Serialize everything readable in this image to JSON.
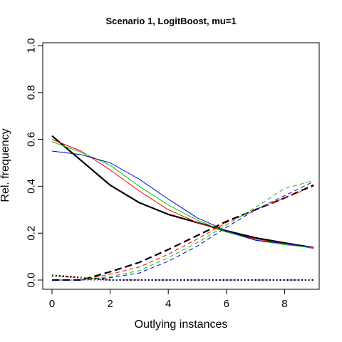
{
  "chart_data": {
    "type": "line",
    "title": "Scenario 1, LogitBoost, mu=1",
    "xlabel": "Outlying instances",
    "ylabel": "Rel. frequency",
    "xlim": [
      0,
      9
    ],
    "ylim": [
      0,
      1
    ],
    "x_ticks": [
      "0",
      "2",
      "4",
      "6",
      "8"
    ],
    "y_ticks": [
      "0.0",
      "0.2",
      "0.4",
      "0.6",
      "0.8",
      "1.0"
    ],
    "x": [
      0,
      1,
      2,
      3,
      4,
      5,
      6,
      7,
      8,
      9
    ],
    "series": [
      {
        "color": "#000000",
        "style": "solid",
        "width": 2.2,
        "values": [
          0.615,
          0.51,
          0.405,
          0.33,
          0.28,
          0.245,
          0.21,
          0.18,
          0.158,
          0.138
        ]
      },
      {
        "color": "#ff0000",
        "style": "solid",
        "width": 1,
        "values": [
          0.6,
          0.55,
          0.47,
          0.38,
          0.3,
          0.245,
          0.205,
          0.175,
          0.155,
          0.135
        ]
      },
      {
        "color": "#00cc00",
        "style": "solid",
        "width": 1,
        "values": [
          0.59,
          0.545,
          0.49,
          0.4,
          0.32,
          0.255,
          0.205,
          0.17,
          0.15,
          0.138
        ]
      },
      {
        "color": "#0000cc",
        "style": "solid",
        "width": 1,
        "values": [
          0.55,
          0.535,
          0.5,
          0.43,
          0.345,
          0.265,
          0.21,
          0.17,
          0.155,
          0.14
        ]
      },
      {
        "color": "#000000",
        "style": "dashed",
        "width": 2.2,
        "values": [
          0.0,
          0.0,
          0.035,
          0.075,
          0.13,
          0.19,
          0.25,
          0.3,
          0.35,
          0.405
        ]
      },
      {
        "color": "#ff0000",
        "style": "dashed",
        "width": 1,
        "values": [
          0.0,
          0.0,
          0.025,
          0.055,
          0.11,
          0.175,
          0.245,
          0.3,
          0.35,
          0.4
        ]
      },
      {
        "color": "#00cc00",
        "style": "dashed",
        "width": 1,
        "values": [
          0.0,
          0.0,
          0.015,
          0.04,
          0.095,
          0.16,
          0.235,
          0.31,
          0.39,
          0.425
        ]
      },
      {
        "color": "#0000cc",
        "style": "dashed",
        "width": 1,
        "values": [
          0.0,
          0.0,
          0.01,
          0.03,
          0.08,
          0.145,
          0.225,
          0.3,
          0.36,
          0.42
        ]
      },
      {
        "color": "#000000",
        "style": "dotted",
        "width": 2.2,
        "values": [
          0.02,
          0.01,
          0.0,
          0.0,
          0.0,
          0.0,
          0.0,
          0.0,
          0.0,
          0.0
        ]
      },
      {
        "color": "#ff0000",
        "style": "dotted",
        "width": 1,
        "values": [
          0.02,
          0.012,
          0.002,
          0.0,
          0.0,
          0.0,
          0.0,
          0.0,
          0.0,
          0.0
        ]
      },
      {
        "color": "#00cc00",
        "style": "dotted",
        "width": 1,
        "values": [
          0.015,
          0.01,
          0.0,
          0.0,
          0.0,
          0.0,
          0.0,
          0.0,
          0.0,
          0.0
        ]
      },
      {
        "color": "#0000cc",
        "style": "dotted",
        "width": 1,
        "values": [
          0.0,
          0.0,
          0.0,
          0.0,
          0.0,
          0.0,
          0.0,
          0.0,
          0.0,
          0.0
        ]
      }
    ],
    "grid": false,
    "legend": "none"
  }
}
